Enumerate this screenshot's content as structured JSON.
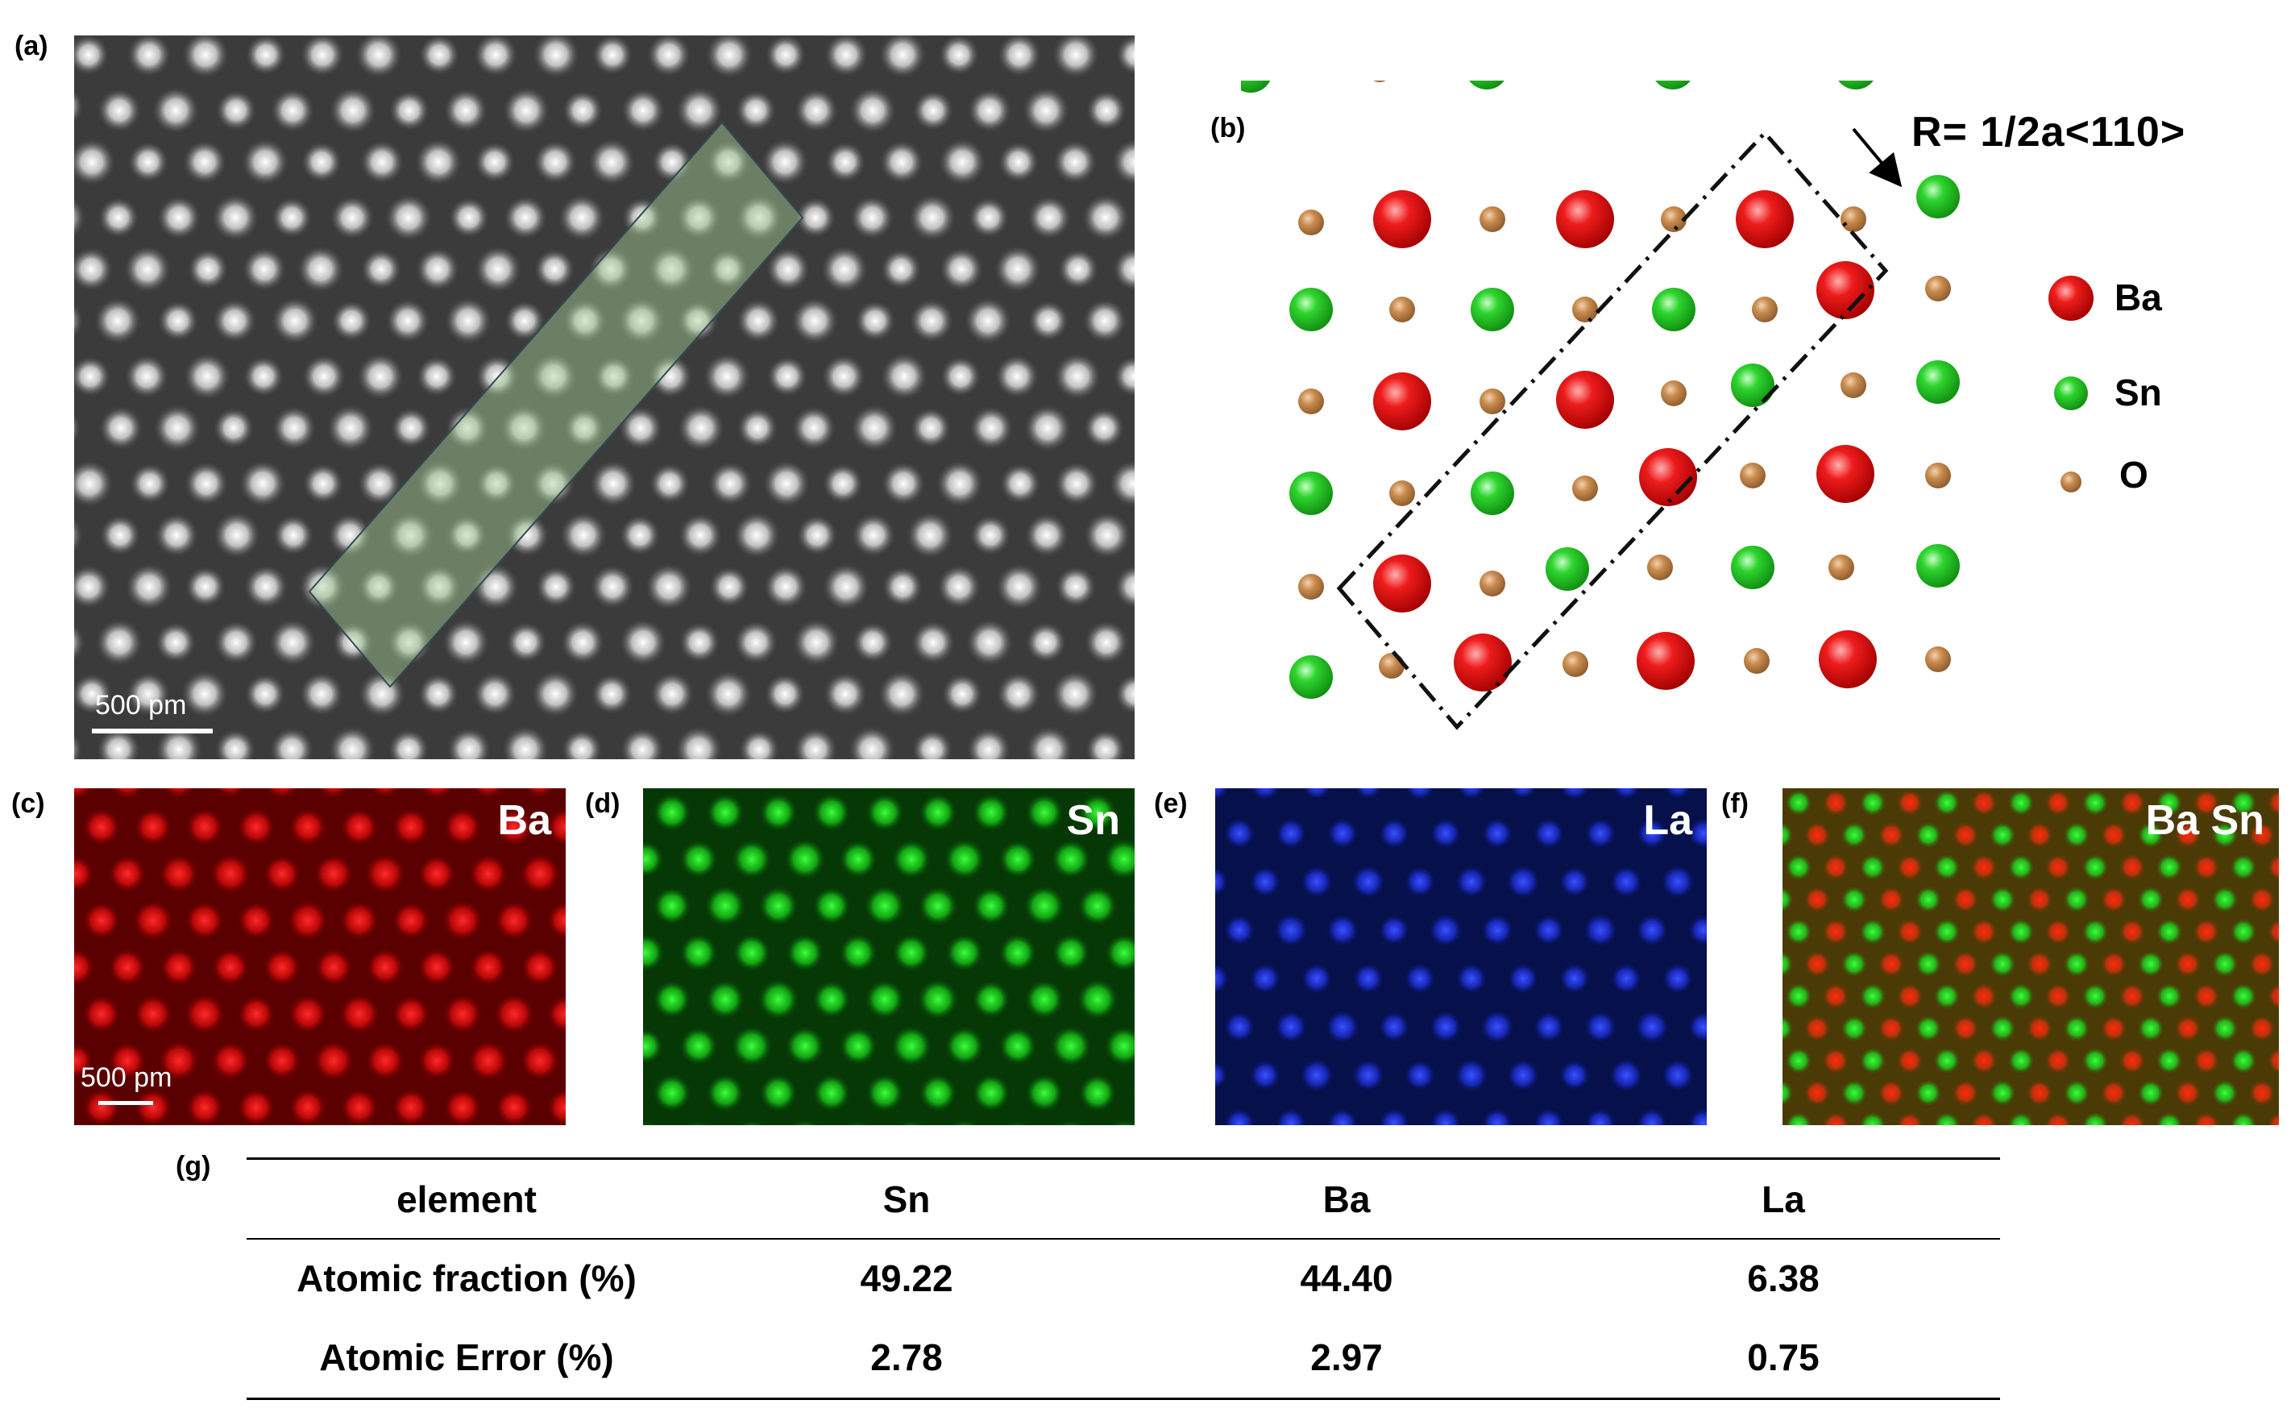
{
  "panels": {
    "a": "(a)",
    "b": "(b)",
    "c": "(c)",
    "d": "(d)",
    "e": "(e)",
    "f": "(f)",
    "g": "(g)"
  },
  "scalebars": {
    "a": "500 pm",
    "c": "500 pm"
  },
  "structure": {
    "vector_label": "R= 1/2a<110>",
    "legend": [
      {
        "name": "Ba",
        "color": "#e31a1c"
      },
      {
        "name": "Sn",
        "color": "#22c422"
      },
      {
        "name": "O",
        "color": "#c8874a"
      }
    ]
  },
  "maps": {
    "c": {
      "label": "Ba",
      "color": "#ff1a1a"
    },
    "d": {
      "label": "Sn",
      "color": "#22e022"
    },
    "e": {
      "label": "La",
      "color": "#2a3cff"
    },
    "f": {
      "label": "Ba Sn"
    }
  },
  "table": {
    "headers": [
      "element",
      "Sn",
      "Ba",
      "La"
    ],
    "rows": [
      [
        "Atomic fraction (%)",
        "49.22",
        "44.40",
        "6.38"
      ],
      [
        "Atomic Error (%)",
        "2.78",
        "2.97",
        "0.75"
      ]
    ]
  }
}
